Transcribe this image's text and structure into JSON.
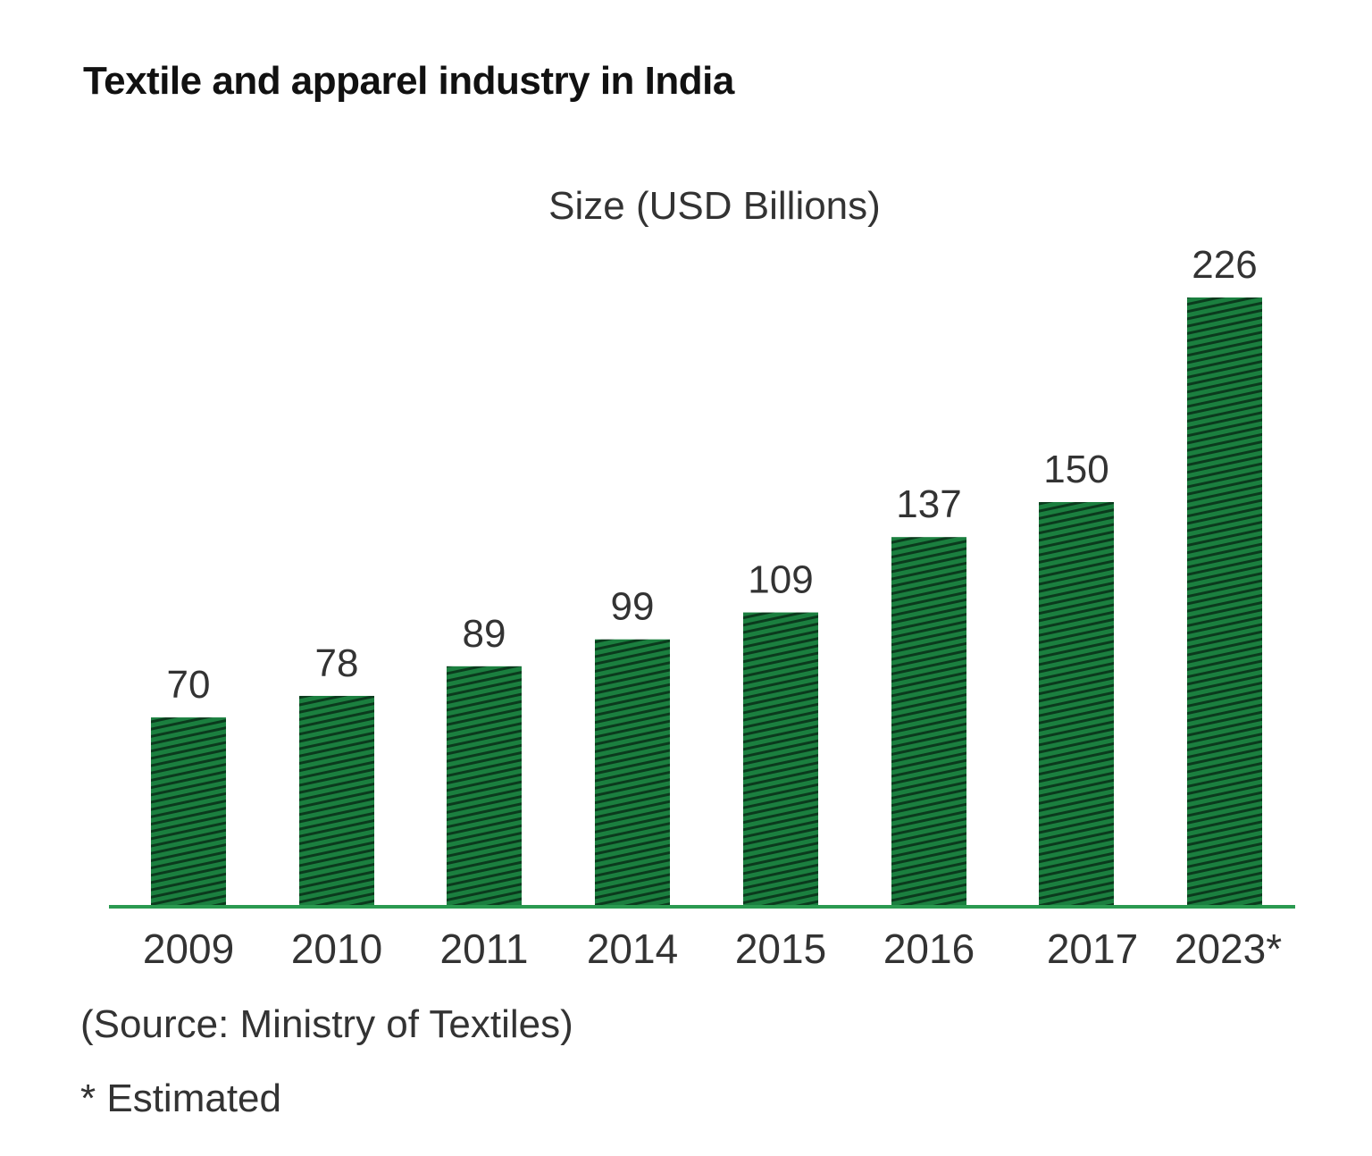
{
  "chart_data": {
    "type": "bar",
    "title": "Textile and apparel industry in India",
    "subtitle": "Size (USD Billions)",
    "categories": [
      "2009",
      "2010",
      "2011",
      "2014",
      "2015",
      "2016",
      "2017",
      "2023*"
    ],
    "values": [
      70,
      78,
      89,
      99,
      109,
      137,
      150,
      226
    ],
    "ylim": [
      0,
      226
    ],
    "grid": false,
    "source": "(Source: Ministry of Textiles)",
    "footnote": "* Estimated",
    "colors": {
      "bar": "#1b7f3f",
      "stripe": "#0b3a1d",
      "axis": "#2a9a50"
    }
  }
}
